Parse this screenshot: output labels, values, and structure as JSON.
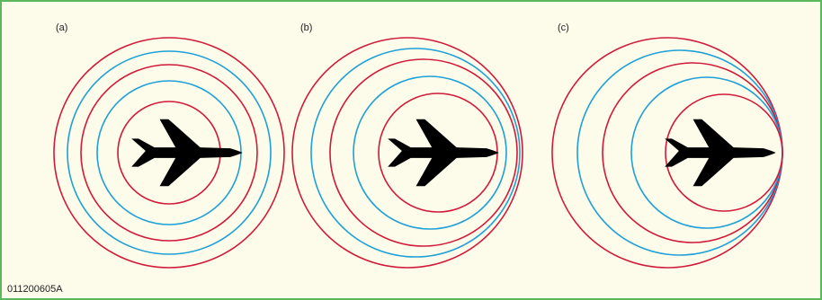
{
  "figure_id": "011200605A",
  "colors": {
    "background": "#fdfbea",
    "border": "#5cb85c",
    "ring_red": "#d11a3a",
    "ring_blue": "#1ea0d8",
    "aircraft": "#000000"
  },
  "panels": [
    {
      "label": "(a)"
    },
    {
      "label": "(b)"
    },
    {
      "label": "(c)"
    }
  ]
}
